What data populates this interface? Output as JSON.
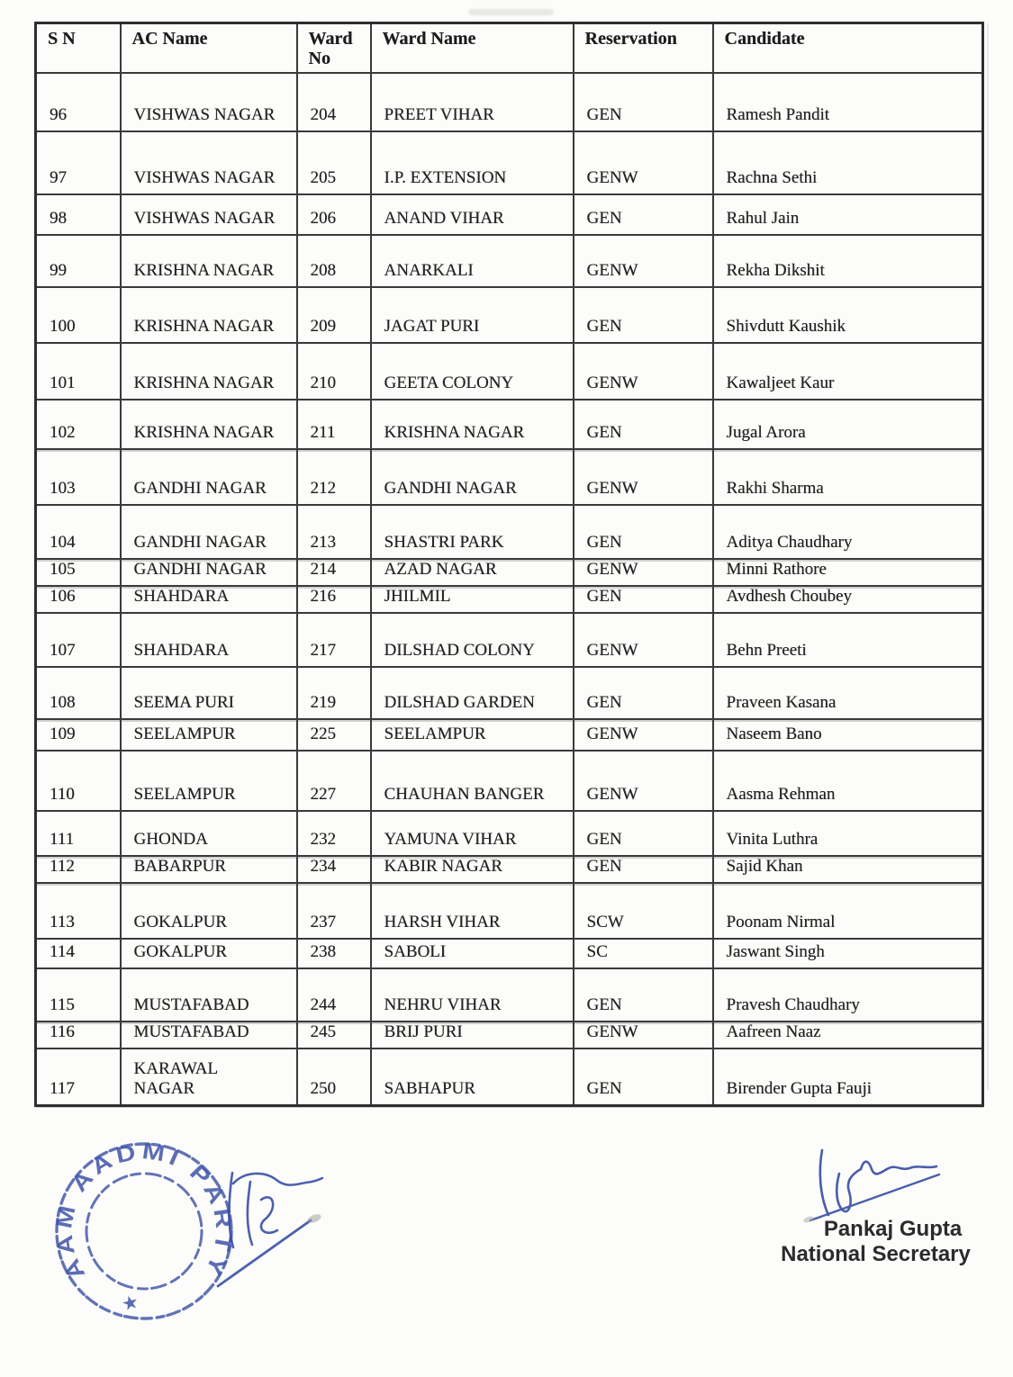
{
  "page": {
    "table": {
      "headers": [
        "S N",
        "AC Name",
        "Ward No",
        "Ward Name",
        "Reservation",
        "Candidate"
      ],
      "rows": [
        {
          "sn": "96",
          "ac_name": "VISHWAS NAGAR",
          "ward_no": "204",
          "ward_name": "PREET VIHAR",
          "reservation": "GEN",
          "candidate": "Ramesh Pandit"
        },
        {
          "sn": "97",
          "ac_name": "VISHWAS NAGAR",
          "ward_no": "205",
          "ward_name": "I.P. EXTENSION",
          "reservation": "GENW",
          "candidate": "Rachna Sethi"
        },
        {
          "sn": "98",
          "ac_name": "VISHWAS NAGAR",
          "ward_no": "206",
          "ward_name": "ANAND VIHAR",
          "reservation": "GEN",
          "candidate": "Rahul Jain"
        },
        {
          "sn": "99",
          "ac_name": "KRISHNA NAGAR",
          "ward_no": "208",
          "ward_name": "ANARKALI",
          "reservation": "GENW",
          "candidate": "Rekha Dikshit"
        },
        {
          "sn": "100",
          "ac_name": "KRISHNA NAGAR",
          "ward_no": "209",
          "ward_name": "JAGAT PURI",
          "reservation": "GEN",
          "candidate": "Shivdutt Kaushik"
        },
        {
          "sn": "101",
          "ac_name": "KRISHNA NAGAR",
          "ward_no": "210",
          "ward_name": "GEETA COLONY",
          "reservation": "GENW",
          "candidate": "Kawaljeet Kaur"
        },
        {
          "sn": "102",
          "ac_name": "KRISHNA NAGAR",
          "ward_no": "211",
          "ward_name": "KRISHNA NAGAR",
          "reservation": "GEN",
          "candidate": "Jugal Arora"
        },
        {
          "sn": "103",
          "ac_name": "GANDHI NAGAR",
          "ward_no": "212",
          "ward_name": "GANDHI NAGAR",
          "reservation": "GENW",
          "candidate": "Rakhi Sharma"
        },
        {
          "sn": "104",
          "ac_name": "GANDHI NAGAR",
          "ward_no": "213",
          "ward_name": "SHASTRI PARK",
          "reservation": "GEN",
          "candidate": "Aditya Chaudhary"
        },
        {
          "sn": "105",
          "ac_name": "GANDHI NAGAR",
          "ward_no": "214",
          "ward_name": "AZAD NAGAR",
          "reservation": "GENW",
          "candidate": "Minni Rathore"
        },
        {
          "sn": "106",
          "ac_name": "SHAHDARA",
          "ward_no": "216",
          "ward_name": "JHILMIL",
          "reservation": "GEN",
          "candidate": "Avdhesh Choubey"
        },
        {
          "sn": "107",
          "ac_name": "SHAHDARA",
          "ward_no": "217",
          "ward_name": "DILSHAD COLONY",
          "reservation": "GENW",
          "candidate": "Behn Preeti"
        },
        {
          "sn": "108",
          "ac_name": "SEEMA PURI",
          "ward_no": "219",
          "ward_name": "DILSHAD GARDEN",
          "reservation": "GEN",
          "candidate": "Praveen Kasana"
        },
        {
          "sn": "109",
          "ac_name": "SEELAMPUR",
          "ward_no": "225",
          "ward_name": "SEELAMPUR",
          "reservation": "GENW",
          "candidate": "Naseem Bano"
        },
        {
          "sn": "110",
          "ac_name": "SEELAMPUR",
          "ward_no": "227",
          "ward_name": "CHAUHAN BANGER",
          "reservation": "GENW",
          "candidate": "Aasma Rehman"
        },
        {
          "sn": "111",
          "ac_name": "GHONDA",
          "ward_no": "232",
          "ward_name": "YAMUNA VIHAR",
          "reservation": "GEN",
          "candidate": "Vinita Luthra"
        },
        {
          "sn": "112",
          "ac_name": "BABARPUR",
          "ward_no": "234",
          "ward_name": "KABIR NAGAR",
          "reservation": "GEN",
          "candidate": "Sajid Khan"
        },
        {
          "sn": "113",
          "ac_name": "GOKALPUR",
          "ward_no": "237",
          "ward_name": "HARSH VIHAR",
          "reservation": "SCW",
          "candidate": "Poonam Nirmal"
        },
        {
          "sn": "114",
          "ac_name": "GOKALPUR",
          "ward_no": "238",
          "ward_name": "SABOLI",
          "reservation": "SC",
          "candidate": "Jaswant Singh"
        },
        {
          "sn": "115",
          "ac_name": "MUSTAFABAD",
          "ward_no": "244",
          "ward_name": "NEHRU VIHAR",
          "reservation": "GEN",
          "candidate": "Pravesh Chaudhary"
        },
        {
          "sn": "116",
          "ac_name": "MUSTAFABAD",
          "ward_no": "245",
          "ward_name": "BRIJ PURI",
          "reservation": "GENW",
          "candidate": "Aafreen Naaz"
        },
        {
          "sn": "117",
          "ac_name": "KARAWAL\nNAGAR",
          "ward_no": "250",
          "ward_name": "SABHAPUR",
          "reservation": "GEN",
          "candidate": "Birender Gupta Fauji"
        }
      ]
    },
    "stamp": {
      "ring_text": "AAM AADMI PARTY",
      "star": "★",
      "ink_color": "#4155a8"
    },
    "signature_ink": "#3a50a6",
    "signatory": {
      "name": "Pankaj Gupta",
      "title": "National Secretary"
    }
  }
}
